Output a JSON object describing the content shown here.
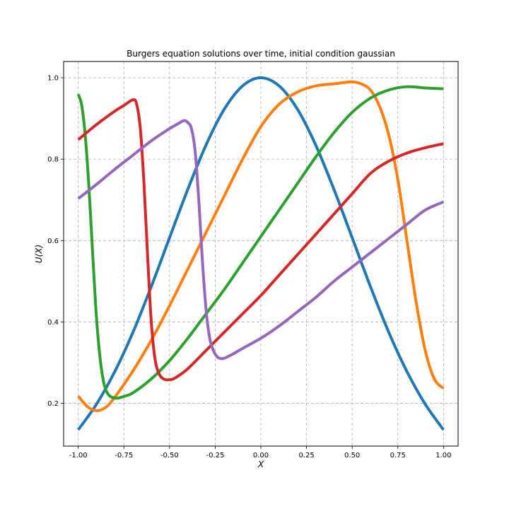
{
  "chart_data": {
    "type": "line",
    "title": "Burgers equation solutions over time, initial condition gaussian",
    "xlabel": "X",
    "ylabel": "U(X)",
    "xlim": [
      -1.08,
      1.08
    ],
    "ylim": [
      0.095,
      1.04
    ],
    "xticks": [
      -1.0,
      -0.75,
      -0.5,
      -0.25,
      0.0,
      0.25,
      0.5,
      0.75,
      1.0
    ],
    "xtick_labels": [
      "-1.00",
      "-0.75",
      "-0.50",
      "-0.25",
      "0.00",
      "0.25",
      "0.50",
      "0.75",
      "1.00"
    ],
    "yticks": [
      0.2,
      0.4,
      0.6,
      0.8,
      1.0
    ],
    "ytick_labels": [
      "0.2",
      "0.4",
      "0.6",
      "0.8",
      "1.0"
    ],
    "grid": true,
    "series": [
      {
        "color": "#1f77b4",
        "x": [
          -1.0,
          -0.9,
          -0.8,
          -0.7,
          -0.6,
          -0.5,
          -0.4,
          -0.3,
          -0.2,
          -0.1,
          0.0,
          0.1,
          0.2,
          0.3,
          0.4,
          0.5,
          0.6,
          0.7,
          0.8,
          0.9,
          1.0
        ],
        "y": [
          0.135,
          0.198,
          0.278,
          0.375,
          0.487,
          0.607,
          0.726,
          0.835,
          0.923,
          0.98,
          1.0,
          0.98,
          0.923,
          0.835,
          0.726,
          0.607,
          0.487,
          0.375,
          0.278,
          0.198,
          0.135
        ]
      },
      {
        "color": "#ff7f0e",
        "x": [
          -1.0,
          -0.95,
          -0.9,
          -0.85,
          -0.8,
          -0.7,
          -0.6,
          -0.5,
          -0.4,
          -0.3,
          -0.2,
          -0.1,
          0.0,
          0.1,
          0.2,
          0.3,
          0.4,
          0.45,
          0.5,
          0.55,
          0.6,
          0.65,
          0.7,
          0.75,
          0.8,
          0.85,
          0.9,
          0.95,
          1.0
        ],
        "y": [
          0.218,
          0.192,
          0.182,
          0.19,
          0.215,
          0.28,
          0.355,
          0.44,
          0.53,
          0.62,
          0.71,
          0.8,
          0.88,
          0.935,
          0.965,
          0.98,
          0.985,
          0.988,
          0.99,
          0.985,
          0.97,
          0.93,
          0.86,
          0.75,
          0.6,
          0.45,
          0.33,
          0.26,
          0.237
        ]
      },
      {
        "color": "#2ca02c",
        "x": [
          -1.0,
          -0.98,
          -0.96,
          -0.94,
          -0.92,
          -0.9,
          -0.88,
          -0.86,
          -0.84,
          -0.82,
          -0.8,
          -0.78,
          -0.75,
          -0.7,
          -0.6,
          -0.5,
          -0.4,
          -0.3,
          -0.2,
          -0.1,
          0.0,
          0.1,
          0.2,
          0.3,
          0.4,
          0.5,
          0.6,
          0.7,
          0.8,
          0.9,
          0.95,
          1.0
        ],
        "y": [
          0.96,
          0.93,
          0.85,
          0.72,
          0.56,
          0.41,
          0.31,
          0.25,
          0.225,
          0.216,
          0.213,
          0.213,
          0.217,
          0.226,
          0.26,
          0.305,
          0.36,
          0.42,
          0.48,
          0.545,
          0.61,
          0.675,
          0.74,
          0.805,
          0.865,
          0.915,
          0.95,
          0.97,
          0.978,
          0.975,
          0.974,
          0.973
        ]
      },
      {
        "color": "#d62728",
        "x": [
          -1.0,
          -0.9,
          -0.8,
          -0.75,
          -0.7,
          -0.68,
          -0.66,
          -0.64,
          -0.62,
          -0.6,
          -0.58,
          -0.56,
          -0.54,
          -0.52,
          -0.5,
          -0.48,
          -0.45,
          -0.4,
          -0.3,
          -0.2,
          -0.1,
          0.0,
          0.1,
          0.2,
          0.3,
          0.4,
          0.5,
          0.6,
          0.7,
          0.8,
          0.9,
          1.0
        ],
        "y": [
          0.848,
          0.885,
          0.918,
          0.932,
          0.946,
          0.935,
          0.875,
          0.74,
          0.56,
          0.4,
          0.31,
          0.275,
          0.262,
          0.258,
          0.258,
          0.26,
          0.268,
          0.285,
          0.33,
          0.375,
          0.42,
          0.465,
          0.515,
          0.565,
          0.615,
          0.665,
          0.715,
          0.765,
          0.795,
          0.815,
          0.828,
          0.838
        ]
      },
      {
        "color": "#9467bd",
        "x": [
          -1.0,
          -0.9,
          -0.8,
          -0.7,
          -0.6,
          -0.5,
          -0.45,
          -0.42,
          -0.4,
          -0.38,
          -0.36,
          -0.34,
          -0.32,
          -0.3,
          -0.28,
          -0.26,
          -0.24,
          -0.22,
          -0.2,
          -0.18,
          -0.15,
          -0.1,
          0.0,
          0.1,
          0.2,
          0.3,
          0.4,
          0.5,
          0.6,
          0.7,
          0.8,
          0.9,
          1.0
        ],
        "y": [
          0.703,
          0.738,
          0.775,
          0.81,
          0.845,
          0.875,
          0.888,
          0.895,
          0.89,
          0.875,
          0.82,
          0.7,
          0.55,
          0.43,
          0.36,
          0.33,
          0.315,
          0.31,
          0.311,
          0.315,
          0.322,
          0.335,
          0.36,
          0.39,
          0.425,
          0.46,
          0.5,
          0.535,
          0.57,
          0.605,
          0.64,
          0.675,
          0.695
        ]
      }
    ]
  }
}
